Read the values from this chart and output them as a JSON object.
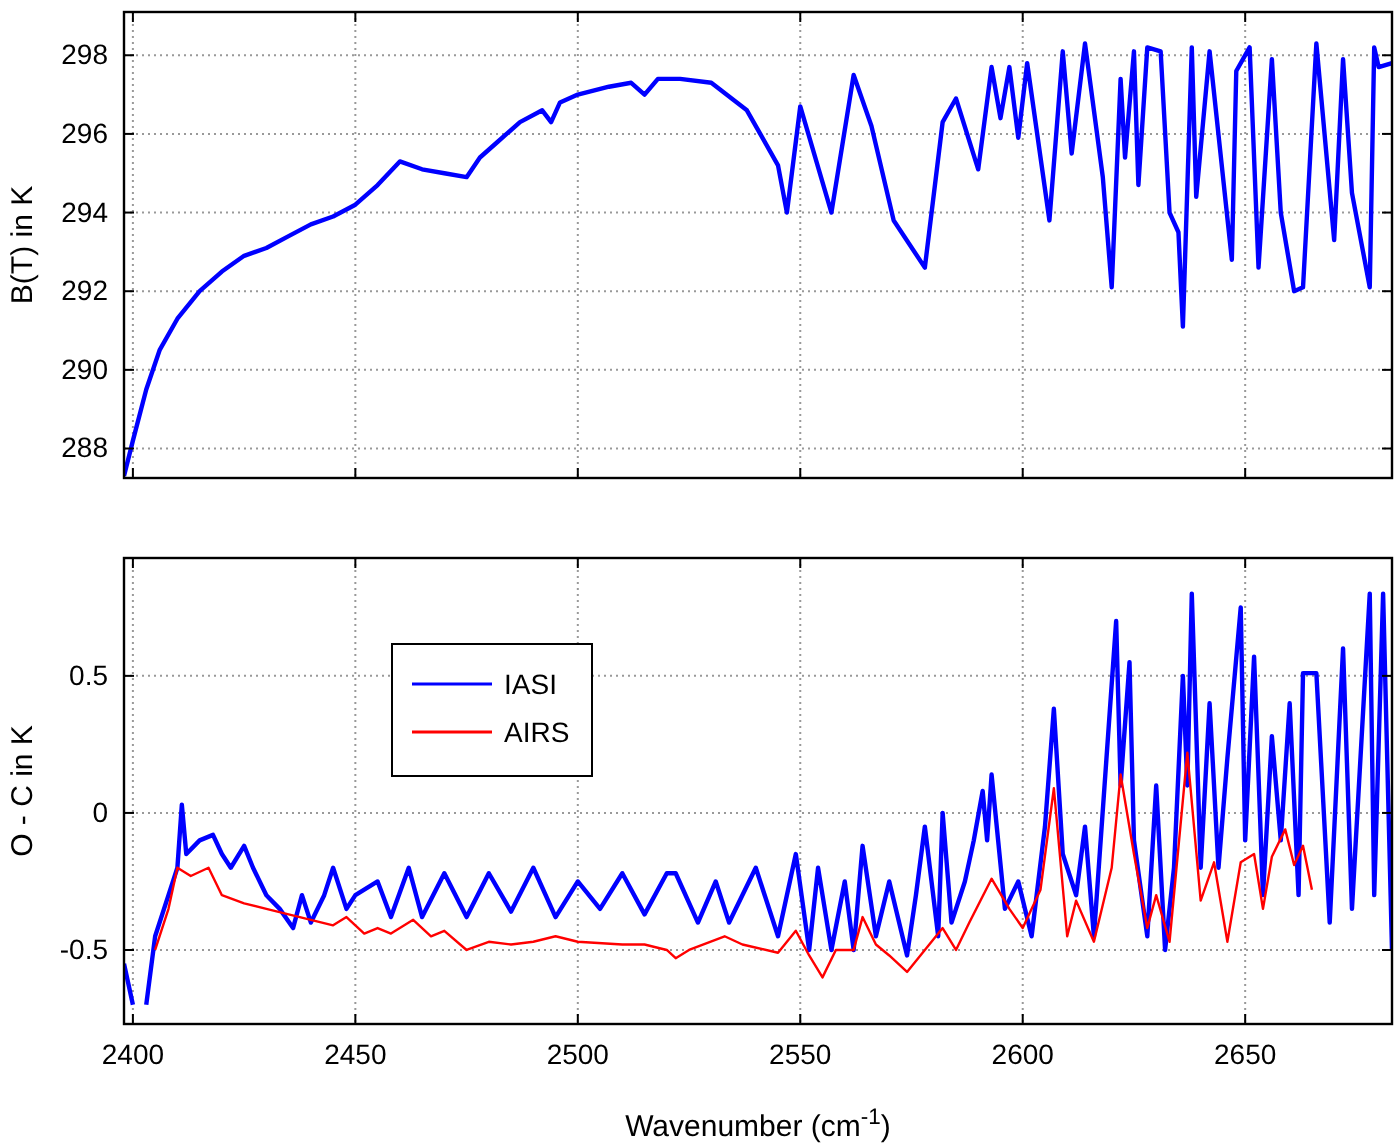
{
  "chart_data": [
    {
      "type": "line",
      "ylabel": "B(T) in K",
      "xlim": [
        2398,
        2683
      ],
      "ylim": [
        287.25,
        299.1
      ],
      "xticks": [
        2400,
        2450,
        2500,
        2550,
        2600,
        2650
      ],
      "yticks": [
        288,
        290,
        292,
        294,
        296,
        298
      ],
      "grid": true,
      "tick_labels": "y",
      "series": [
        {
          "color": "#0000ff",
          "x": [
            2398,
            2400,
            2403,
            2406,
            2410,
            2415,
            2420,
            2425,
            2430,
            2435,
            2440,
            2445,
            2450,
            2455,
            2460,
            2465,
            2470,
            2475,
            2478,
            2482,
            2487,
            2492,
            2494,
            2496,
            2500,
            2507,
            2512,
            2515,
            2518,
            2523,
            2530,
            2538,
            2545,
            2547,
            2550,
            2557,
            2562,
            2566,
            2571,
            2578,
            2582,
            2585,
            2590,
            2593,
            2595,
            2597,
            2599,
            2601,
            2606,
            2609,
            2611,
            2614,
            2618,
            2620,
            2622,
            2623,
            2625,
            2626,
            2628,
            2631,
            2633,
            2635,
            2636,
            2638,
            2639,
            2642,
            2647,
            2648,
            2651,
            2653,
            2656,
            2658,
            2661,
            2663,
            2666,
            2670,
            2672,
            2674,
            2678,
            2679,
            2680,
            2683
          ],
          "values": [
            287.3,
            288.2,
            289.5,
            290.5,
            291.3,
            292.0,
            292.5,
            292.9,
            293.1,
            293.4,
            293.7,
            293.9,
            294.2,
            294.7,
            295.3,
            295.1,
            295.0,
            294.9,
            295.4,
            295.8,
            296.3,
            296.6,
            296.3,
            296.8,
            297.0,
            297.2,
            297.3,
            297.0,
            297.4,
            297.4,
            297.3,
            296.6,
            295.2,
            294.0,
            296.7,
            294.0,
            297.5,
            296.2,
            293.8,
            292.6,
            296.3,
            296.9,
            295.1,
            297.7,
            296.4,
            297.7,
            295.9,
            297.8,
            293.8,
            298.1,
            295.5,
            298.3,
            294.9,
            292.1,
            297.4,
            295.4,
            298.1,
            294.7,
            298.2,
            298.1,
            294.0,
            293.5,
            291.1,
            298.2,
            294.4,
            298.1,
            292.8,
            297.6,
            298.2,
            292.6,
            297.9,
            294.0,
            292.0,
            292.1,
            298.3,
            293.3,
            297.9,
            294.5,
            292.1,
            298.2,
            297.7,
            297.8
          ]
        }
      ]
    },
    {
      "type": "line",
      "xlabel": "Wavenumber (cm$^{-1}$)",
      "ylabel": "O - C in K",
      "xlim": [
        2398,
        2683
      ],
      "ylim": [
        -0.77,
        0.93
      ],
      "xticks": [
        2400,
        2450,
        2500,
        2550,
        2600,
        2650
      ],
      "yticks": [
        -0.5,
        0,
        0.5
      ],
      "grid": true,
      "legend": "top left",
      "series": [
        {
          "name": "IASI",
          "color": "#0000ff",
          "x": [
            2398,
            2400,
            2401,
            2403,
            2405,
            2408,
            2410,
            2411,
            2412,
            2415,
            2418,
            2420,
            2422,
            2425,
            2427,
            2430,
            2433,
            2436,
            2438,
            2440,
            2443,
            2445,
            2448,
            2450,
            2455,
            2458,
            2462,
            2465,
            2470,
            2475,
            2480,
            2485,
            2490,
            2495,
            2500,
            2505,
            2510,
            2515,
            2520,
            2522,
            2527,
            2531,
            2534,
            2540,
            2545,
            2549,
            2552,
            2554,
            2557,
            2560,
            2562,
            2564,
            2567,
            2570,
            2574,
            2576,
            2578,
            2581,
            2582,
            2584,
            2587,
            2589,
            2591,
            2592,
            2593,
            2596,
            2599,
            2602,
            2605,
            2607,
            2609,
            2612,
            2614,
            2616,
            2621,
            2622,
            2624,
            2625,
            2628,
            2630,
            2632,
            2634,
            2636,
            2637,
            2638,
            2640,
            2642,
            2644,
            2646,
            2649,
            2650,
            2652,
            2654,
            2656,
            2658,
            2660,
            2662,
            2663,
            2666,
            2669,
            2672,
            2674,
            2678,
            2679,
            2681,
            2683
          ],
          "values": [
            -0.55,
            -0.7,
            null,
            -0.7,
            -0.45,
            -0.3,
            -0.2,
            0.03,
            -0.15,
            -0.1,
            -0.08,
            -0.15,
            -0.2,
            -0.12,
            -0.2,
            -0.3,
            -0.35,
            -0.42,
            -0.3,
            -0.4,
            -0.3,
            -0.2,
            -0.35,
            -0.3,
            -0.25,
            -0.38,
            -0.2,
            -0.38,
            -0.22,
            -0.38,
            -0.22,
            -0.36,
            -0.2,
            -0.38,
            -0.25,
            -0.35,
            -0.22,
            -0.37,
            -0.22,
            -0.22,
            -0.4,
            -0.25,
            -0.4,
            -0.2,
            -0.45,
            -0.15,
            -0.5,
            -0.2,
            -0.5,
            -0.25,
            -0.5,
            -0.12,
            -0.45,
            -0.25,
            -0.52,
            -0.3,
            -0.05,
            -0.45,
            0.0,
            -0.4,
            -0.25,
            -0.1,
            0.08,
            -0.1,
            0.14,
            -0.35,
            -0.25,
            -0.45,
            -0.05,
            0.38,
            -0.15,
            -0.3,
            -0.05,
            -0.45,
            0.7,
            0.1,
            0.55,
            -0.1,
            -0.45,
            0.1,
            -0.5,
            -0.2,
            0.5,
            0.1,
            0.8,
            -0.2,
            0.4,
            -0.2,
            0.2,
            0.75,
            -0.1,
            0.57,
            -0.3,
            0.28,
            -0.1,
            0.4,
            -0.3,
            0.51,
            0.51,
            -0.4,
            0.6,
            -0.35,
            0.8,
            -0.3,
            0.8,
            -0.5
          ]
        },
        {
          "name": "AIRS",
          "color": "#ff0000",
          "x": [
            2405,
            2408,
            2410,
            2413,
            2417,
            2420,
            2425,
            2430,
            2435,
            2440,
            2445,
            2448,
            2452,
            2455,
            2458,
            2463,
            2467,
            2470,
            2475,
            2480,
            2485,
            2490,
            2495,
            2500,
            2510,
            2515,
            2520,
            2522,
            2525,
            2533,
            2537,
            2545,
            2549,
            2552,
            2555,
            2558,
            2562,
            2564,
            2567,
            2570,
            2574,
            2578,
            2582,
            2585,
            2588,
            2593,
            2597,
            2600,
            2604,
            2607,
            2610,
            2612,
            2616,
            2620,
            2622,
            2625,
            2628,
            2630,
            2633,
            2637,
            2640,
            2643,
            2646,
            2649,
            2652,
            2654,
            2656,
            2659,
            2661,
            2663,
            2665
          ],
          "values": [
            -0.5,
            -0.35,
            -0.2,
            -0.23,
            -0.2,
            -0.3,
            -0.33,
            -0.35,
            -0.37,
            -0.39,
            -0.41,
            -0.38,
            -0.44,
            -0.42,
            -0.44,
            -0.39,
            -0.45,
            -0.43,
            -0.5,
            -0.47,
            -0.48,
            -0.47,
            -0.45,
            -0.47,
            -0.48,
            -0.48,
            -0.5,
            -0.53,
            -0.5,
            -0.45,
            -0.48,
            -0.51,
            -0.43,
            -0.52,
            -0.6,
            -0.5,
            -0.5,
            -0.38,
            -0.48,
            -0.52,
            -0.58,
            -0.5,
            -0.42,
            -0.5,
            -0.4,
            -0.24,
            -0.35,
            -0.42,
            -0.28,
            0.09,
            -0.45,
            -0.32,
            -0.47,
            -0.2,
            0.14,
            -0.15,
            -0.42,
            -0.3,
            -0.47,
            0.22,
            -0.32,
            -0.18,
            -0.47,
            -0.18,
            -0.15,
            -0.35,
            -0.16,
            -0.06,
            -0.19,
            -0.12,
            -0.28
          ]
        }
      ]
    }
  ]
}
